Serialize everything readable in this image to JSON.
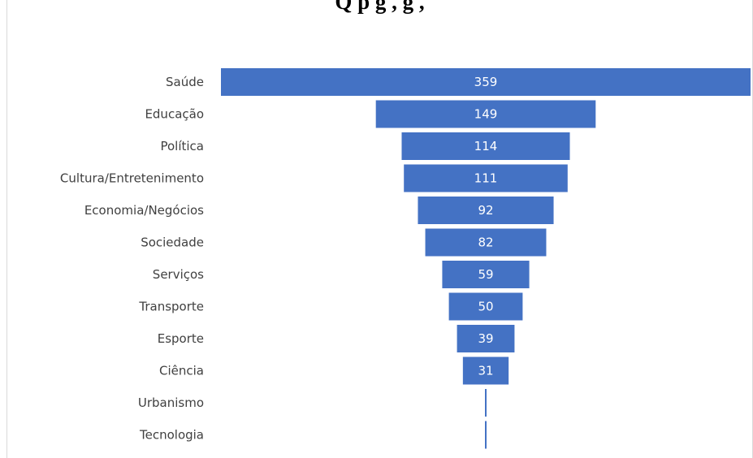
{
  "chart_data": {
    "type": "bar",
    "subtype": "funnel",
    "title": "Q                                     p         g      ,              g   ,",
    "categories": [
      "Saúde",
      "Educação",
      "Política",
      "Cultura/Entretenimento",
      "Economia/Negócios",
      "Sociedade",
      "Serviços",
      "Transporte",
      "Esporte",
      "Ciência",
      "Urbanismo",
      "Tecnologia"
    ],
    "values": [
      359,
      149,
      114,
      111,
      92,
      82,
      59,
      50,
      39,
      31,
      1,
      1
    ],
    "value_labels": [
      "359",
      "149",
      "114",
      "111",
      "92",
      "82",
      "59",
      "50",
      "39",
      "31",
      "",
      ""
    ],
    "bar_color": "#4472c4",
    "label_color": "#404040",
    "value_label_color": "#ffffff",
    "grid": false,
    "legend": "none"
  }
}
